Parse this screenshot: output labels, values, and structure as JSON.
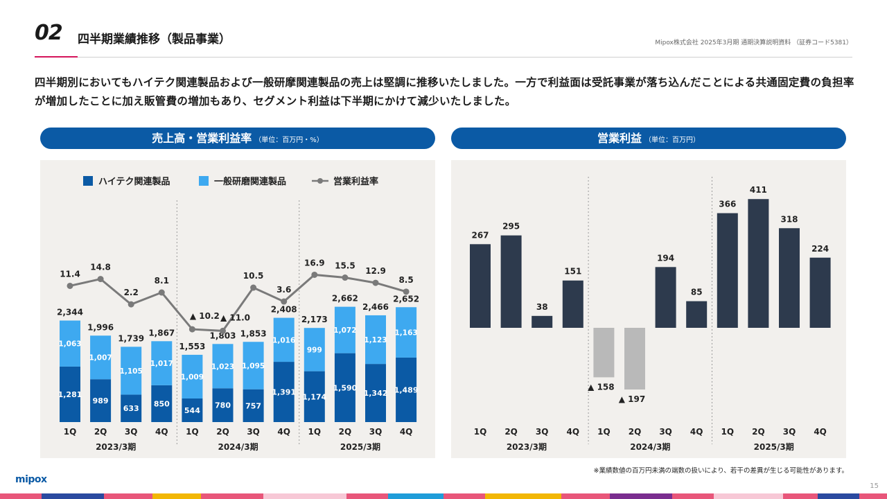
{
  "header": {
    "number": "02",
    "title": "四半期業績推移（製品事業）",
    "source": "Mipox株式会社 2025年3月期 通期決算説明資料 （証券コード5381）"
  },
  "lead": "四半期別においてもハイテク関連製品および一般研摩関連製品の売上は堅調に推移いたしました。一方で利益面は受託事業が落ち込んだことによる共通固定費の負担率が増加したことに加え販管費の増加もあり、セグメント利益は下半期にかけて減少いたしました。",
  "left_title": "売上高・営業利益率",
  "left_unit": "（単位：百万円・%）",
  "right_title": "営業利益",
  "right_unit": "（単位：百万円）",
  "footnote": "※業績数値の百万円未満の端数の扱いにより、若干の差異が生じる可能性があります。",
  "logo": "mipox",
  "page_number": "15",
  "colors": {
    "brand_blue": "#0b5aa5",
    "hitech": "#0b5aa5",
    "general": "#3ea9f0",
    "line": "#7a7a7a",
    "profit_pos": "#2d3a4d",
    "profit_neg": "#b9b9b9",
    "panel_bg": "#f2f0ed",
    "accent_red": "#d4145a"
  },
  "chart_data": [
    {
      "type": "bar",
      "stacked": true,
      "secondary_type": "line",
      "title": "売上高・営業利益率",
      "unit": "（単位：百万円・%）",
      "legend_position": "top",
      "categories": [
        "1Q",
        "2Q",
        "3Q",
        "4Q",
        "1Q",
        "2Q",
        "3Q",
        "4Q",
        "1Q",
        "2Q",
        "3Q",
        "4Q"
      ],
      "groups": [
        "2023/3期",
        "2024/3期",
        "2025/3期"
      ],
      "series": [
        {
          "name": "ハイテク関連製品",
          "kind": "bar",
          "values": [
            1281,
            989,
            633,
            850,
            544,
            780,
            757,
            1391,
            1174,
            1590,
            1342,
            1489
          ]
        },
        {
          "name": "一般研磨関連製品",
          "kind": "bar",
          "values": [
            1063,
            1007,
            1105,
            1017,
            1009,
            1023,
            1095,
            1016,
            999,
            1072,
            1123,
            1163
          ]
        },
        {
          "name": "営業利益率",
          "kind": "line",
          "values": [
            11.4,
            14.8,
            2.2,
            8.1,
            -10.2,
            -11.0,
            10.5,
            3.6,
            16.9,
            15.5,
            12.9,
            8.5
          ]
        }
      ],
      "totals": [
        2344,
        1996,
        1739,
        1867,
        1553,
        1803,
        1853,
        2408,
        2173,
        2662,
        2466,
        2652
      ],
      "hitech_labels": [
        "1,281",
        "989",
        "633",
        "850",
        "544",
        "780",
        "757",
        "1,391",
        "1,174",
        "1,590",
        "1,342",
        "1,489"
      ],
      "general_labels": [
        "1,063",
        "1,007",
        "1,105",
        "1,017",
        "1,009",
        "1,023",
        "1,095",
        "1,016",
        "999",
        "1,072",
        "1,123",
        "1,163"
      ],
      "total_labels": [
        "2,344",
        "1,996",
        "1,739",
        "1,867",
        "1,553",
        "1,803",
        "1,853",
        "2,408",
        "2,173",
        "2,662",
        "2,466",
        "2,652"
      ],
      "rate_labels": [
        "11.4",
        "14.8",
        "2.2",
        "8.1",
        "▲ 10.2",
        "▲ 11.0",
        "10.5",
        "3.6",
        "16.9",
        "15.5",
        "12.9",
        "8.5"
      ]
    },
    {
      "type": "bar",
      "title": "営業利益",
      "unit": "（単位：百万円）",
      "categories": [
        "1Q",
        "2Q",
        "3Q",
        "4Q",
        "1Q",
        "2Q",
        "3Q",
        "4Q",
        "1Q",
        "2Q",
        "3Q",
        "4Q"
      ],
      "groups": [
        "2023/3期",
        "2024/3期",
        "2025/3期"
      ],
      "values": [
        267,
        295,
        38,
        151,
        -158,
        -197,
        194,
        85,
        366,
        411,
        318,
        224
      ],
      "labels": [
        "267",
        "295",
        "38",
        "151",
        "▲ 158",
        "▲ 197",
        "194",
        "85",
        "366",
        "411",
        "318",
        "224"
      ]
    }
  ]
}
